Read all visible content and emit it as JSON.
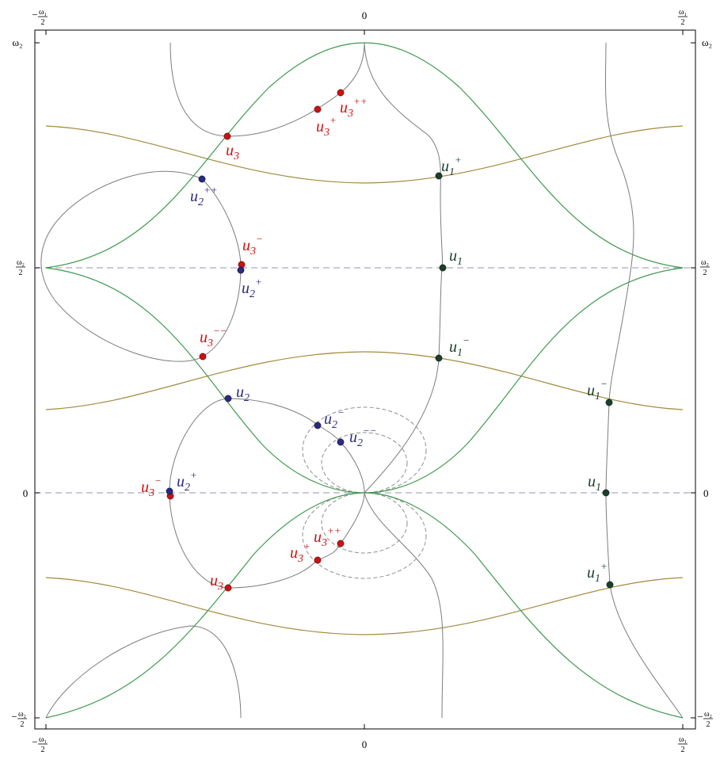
{
  "figure": {
    "colors": {
      "frame": "#000000",
      "green_curve": "#3f9a4f",
      "gold_curve": "#a38a3f",
      "gray_curve": "#7a7a7a",
      "dashed_axis": "#a9a9c0",
      "dashed_circle": "#909090",
      "red_point": "#cc1111",
      "blue_point": "#2a2a80",
      "dark_green_point": "#1a3f2a"
    },
    "axis_ticks": {
      "top": [
        {
          "key": "left",
          "minus": "−",
          "num": "ω₁",
          "den": "2"
        },
        {
          "key": "mid",
          "text": "0"
        },
        {
          "key": "right",
          "minus": "",
          "num": "ω₁",
          "den": "2"
        }
      ],
      "bottom": [
        {
          "key": "left",
          "minus": "−",
          "num": "ω₁",
          "den": "2"
        },
        {
          "key": "mid",
          "text": "0"
        },
        {
          "key": "right",
          "minus": "",
          "num": "ω₁",
          "den": "2"
        }
      ],
      "left": [
        {
          "key": "top",
          "text": "ω₂"
        },
        {
          "key": "upper",
          "minus": "",
          "num": "ω₂",
          "den": "2"
        },
        {
          "key": "mid",
          "text": "0"
        },
        {
          "key": "bottom",
          "minus": "−",
          "num": "ω₂",
          "den": "2"
        }
      ],
      "right": [
        {
          "key": "top",
          "text": "ω₂"
        },
        {
          "key": "upper",
          "minus": "",
          "num": "ω₂",
          "den": "2"
        },
        {
          "key": "mid",
          "text": "0"
        },
        {
          "key": "bottom",
          "minus": "−",
          "num": "ω₂",
          "den": "2"
        }
      ]
    },
    "points": [
      {
        "id": "u3-top",
        "base": "u",
        "sub": "3",
        "sup": "",
        "color": "red"
      },
      {
        "id": "u3p-top",
        "base": "u",
        "sub": "3",
        "sup": "+",
        "color": "red"
      },
      {
        "id": "u3pp-top",
        "base": "u",
        "sub": "3",
        "sup": "++",
        "color": "red"
      },
      {
        "id": "u2pp-left",
        "base": "u",
        "sub": "2",
        "sup": "++",
        "color": "blue"
      },
      {
        "id": "u3m-upper",
        "base": "u",
        "sub": "3",
        "sup": "−",
        "color": "red"
      },
      {
        "id": "u2p-upper",
        "base": "u",
        "sub": "2",
        "sup": "+",
        "color": "blue"
      },
      {
        "id": "u3mm-upper",
        "base": "u",
        "sub": "3",
        "sup": "−−",
        "color": "red"
      },
      {
        "id": "u1p-upper",
        "base": "u",
        "sub": "1",
        "sup": "+",
        "color": "darkgreen"
      },
      {
        "id": "u1-upper",
        "base": "u",
        "sub": "1",
        "sup": "",
        "color": "darkgreen"
      },
      {
        "id": "u1m-upper",
        "base": "u",
        "sub": "1",
        "sup": "−",
        "color": "darkgreen"
      },
      {
        "id": "u2-lower",
        "base": "u",
        "sub": "2",
        "sup": "",
        "color": "blue"
      },
      {
        "id": "u2m-lower",
        "base": "u",
        "sub": "2",
        "sup": "−",
        "color": "blue"
      },
      {
        "id": "u2mm-lower",
        "base": "u",
        "sub": "2",
        "sup": "−−",
        "color": "blue"
      },
      {
        "id": "u3m-lower",
        "base": "u",
        "sub": "3",
        "sup": "−",
        "color": "red"
      },
      {
        "id": "u2p-lower",
        "base": "u",
        "sub": "2",
        "sup": "+",
        "color": "blue"
      },
      {
        "id": "u3pp-lower",
        "base": "u",
        "sub": "3",
        "sup": "++",
        "color": "red"
      },
      {
        "id": "u3p-lower",
        "base": "u",
        "sub": "3",
        "sup": "+",
        "color": "red"
      },
      {
        "id": "u3-lower",
        "base": "u",
        "sub": "3",
        "sup": "",
        "color": "red"
      },
      {
        "id": "u1m-right",
        "base": "u",
        "sub": "1",
        "sup": "−",
        "color": "darkgreen"
      },
      {
        "id": "u1-right",
        "base": "u",
        "sub": "1",
        "sup": "",
        "color": "darkgreen"
      },
      {
        "id": "u1p-right",
        "base": "u",
        "sub": "1",
        "sup": "+",
        "color": "darkgreen"
      }
    ]
  }
}
